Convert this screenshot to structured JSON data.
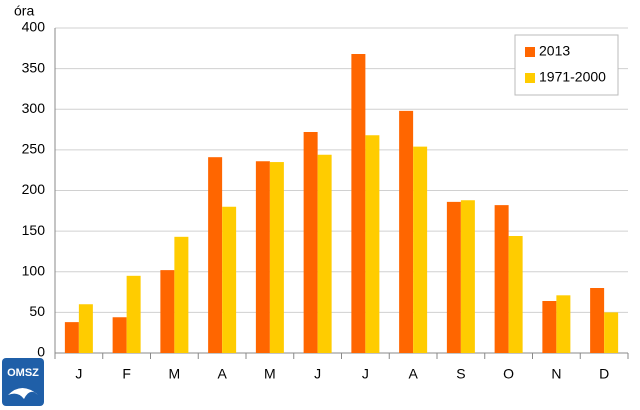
{
  "chart_data": {
    "type": "bar",
    "y_label": "óra",
    "categories": [
      "J",
      "F",
      "M",
      "A",
      "M",
      "J",
      "J",
      "A",
      "S",
      "O",
      "N",
      "D"
    ],
    "series": [
      {
        "name": "2013",
        "color": "#ff6600",
        "values": [
          38,
          44,
          102,
          241,
          236,
          272,
          368,
          298,
          186,
          182,
          64,
          80
        ]
      },
      {
        "name": "1971-2000",
        "color": "#ffcc00",
        "values": [
          60,
          95,
          143,
          180,
          235,
          244,
          268,
          254,
          188,
          144,
          71,
          50
        ]
      }
    ],
    "ylim": [
      0,
      400
    ],
    "yticks": [
      0,
      50,
      100,
      150,
      200,
      250,
      300,
      350,
      400
    ],
    "grid": true,
    "legend": "top-right"
  },
  "logo": "OMSZ"
}
